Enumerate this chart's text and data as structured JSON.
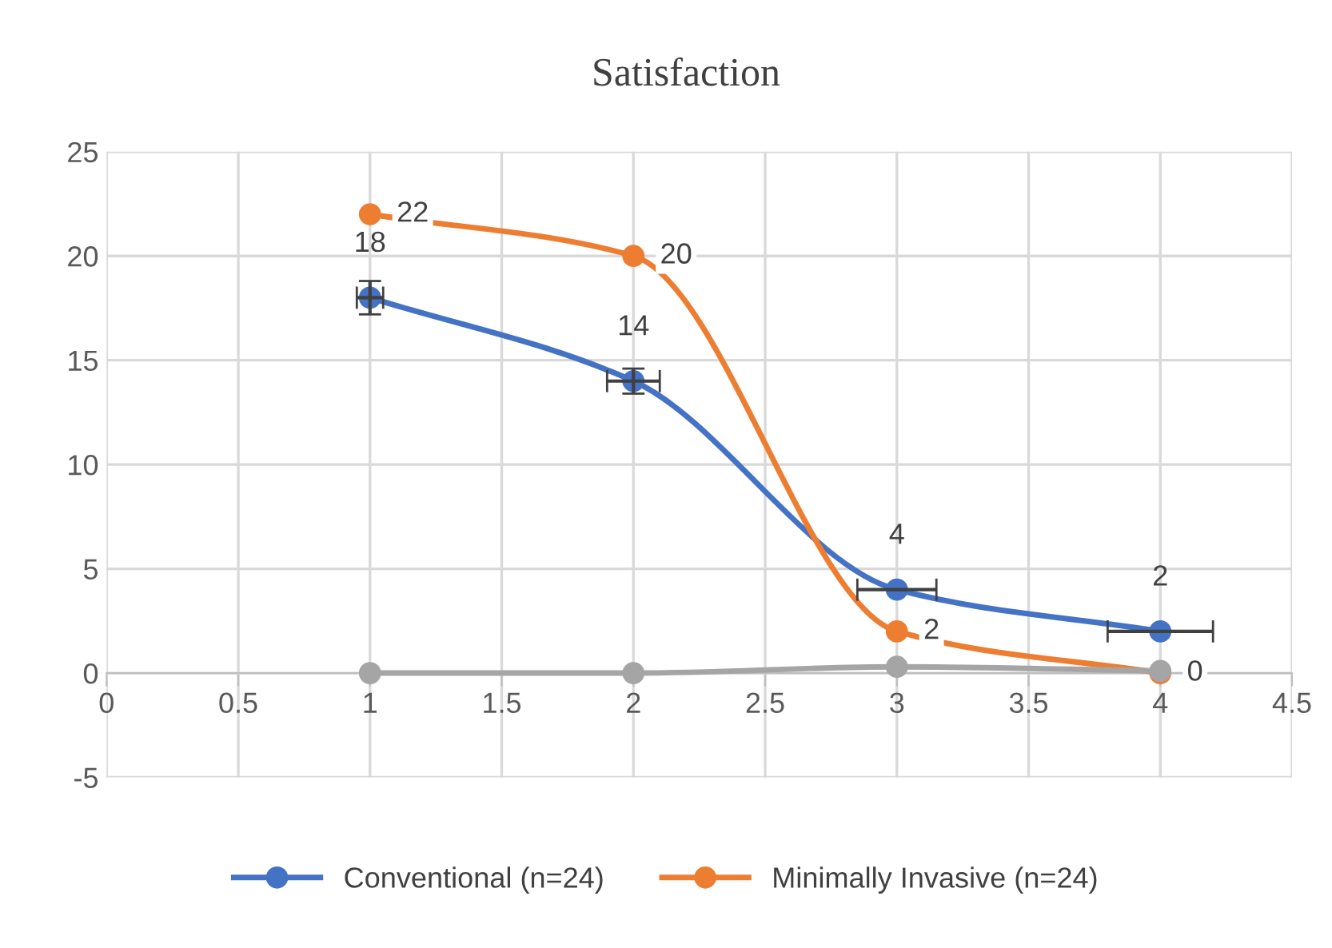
{
  "chart_data": {
    "type": "line",
    "title": "Satisfaction",
    "x": [
      1,
      2,
      3,
      4
    ],
    "series": [
      {
        "name": "Conventional (n=24)",
        "color": "#4472c4",
        "values": [
          18,
          14,
          4,
          2
        ],
        "errors": [
          0.8,
          0.6,
          null,
          null
        ],
        "xerrors": [
          0.05,
          0.1,
          0.15,
          0.2
        ],
        "value_labels": [
          "18",
          "14",
          "4",
          "2"
        ]
      },
      {
        "name": "Minimally Invasive (n=24)",
        "color": "#ed7d31",
        "values": [
          22,
          20,
          2,
          0
        ],
        "value_labels": [
          "22",
          "20",
          "2",
          "0"
        ]
      },
      {
        "color": "#a5a5a5",
        "values": [
          0,
          0,
          0.3,
          0.1
        ]
      }
    ],
    "xlim": [
      0,
      4.5
    ],
    "xticks": [
      0,
      0.5,
      1,
      1.5,
      2,
      2.5,
      3,
      3.5,
      4,
      4.5
    ],
    "ylim": [
      -5,
      25
    ],
    "yticks": [
      -5,
      0,
      5,
      10,
      15,
      20,
      25
    ],
    "grid": true,
    "legend": "bottom",
    "marker": "circle",
    "line_style": "solid"
  }
}
